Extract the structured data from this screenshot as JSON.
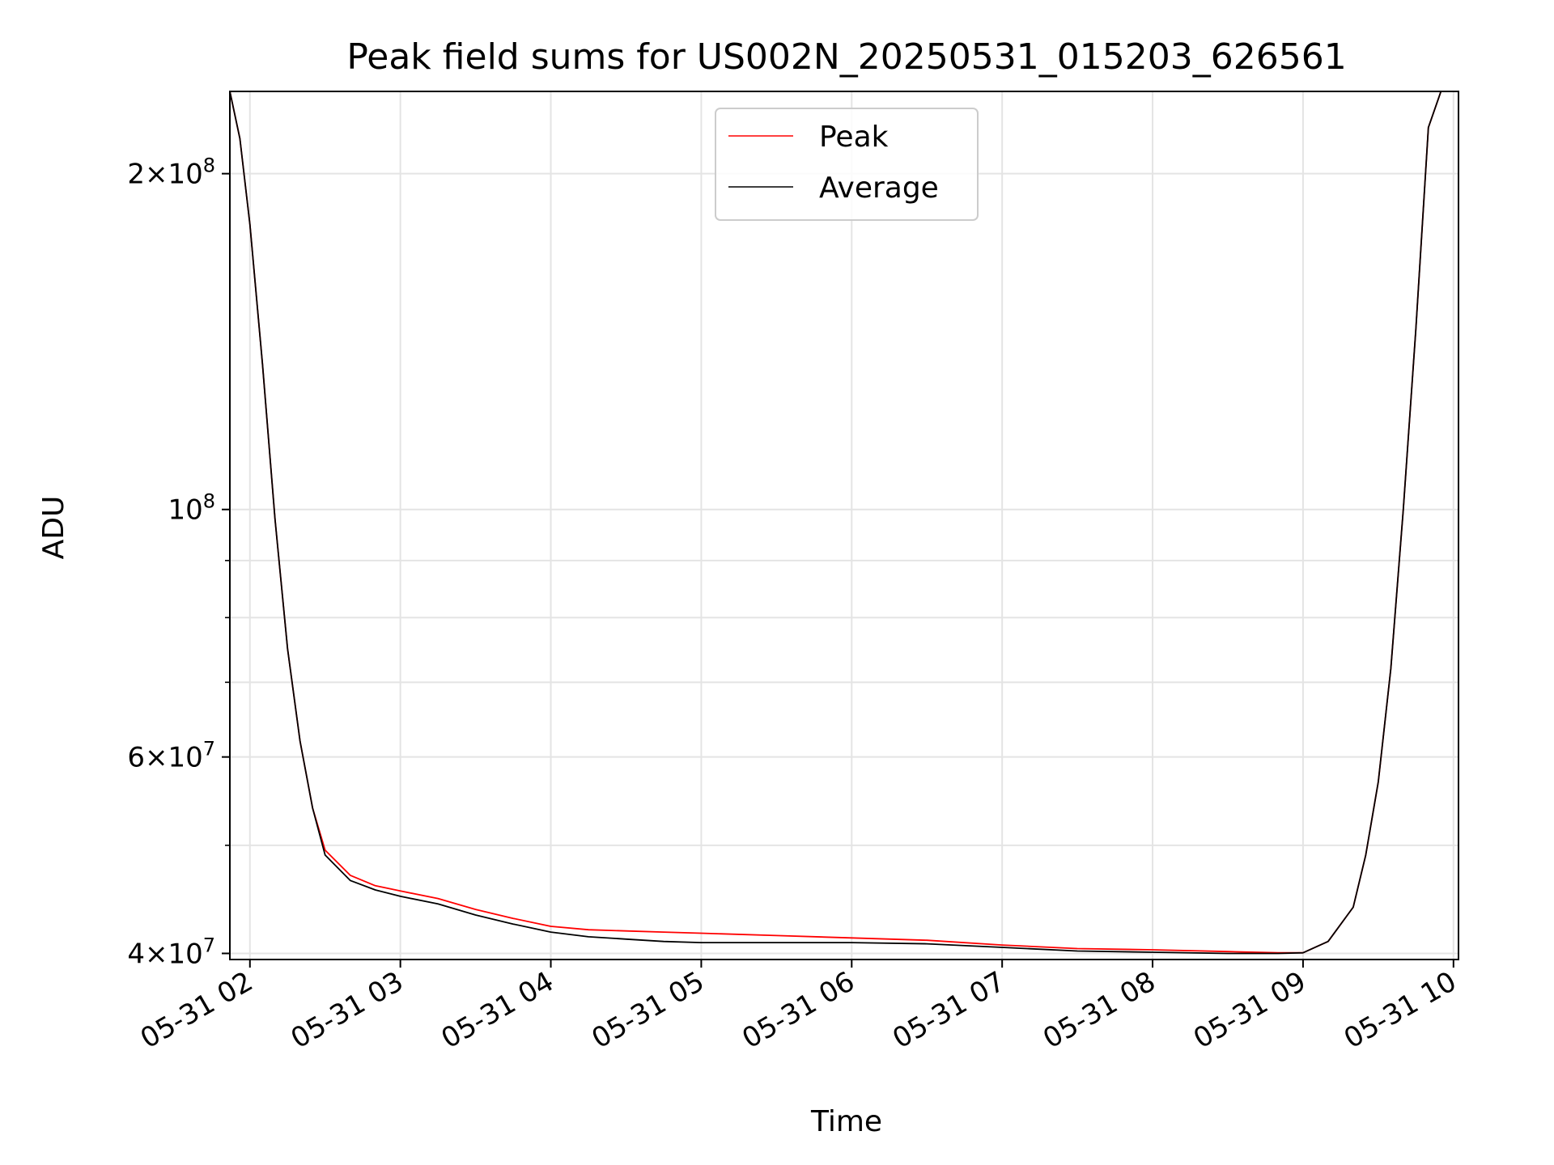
{
  "chart_data": {
    "type": "line",
    "title": "Peak field sums for US002N_20250531_015203_626561",
    "xlabel": "Time",
    "ylabel": "ADU",
    "y_scale": "log",
    "xlim": [
      "2025-05-31T01:52",
      "2025-05-31T10:02"
    ],
    "ylim": [
      39500000,
      237000000
    ],
    "x_ticks": [
      "05-31 02",
      "05-31 03",
      "05-31 04",
      "05-31 05",
      "05-31 06",
      "05-31 07",
      "05-31 08",
      "05-31 09",
      "05-31 10"
    ],
    "y_ticks": [
      {
        "value": 200000000,
        "base": "2×10",
        "exp": "8"
      },
      {
        "value": 100000000,
        "base": "10",
        "exp": "8"
      },
      {
        "value": 60000000,
        "base": "6×10",
        "exp": "7"
      },
      {
        "value": 40000000,
        "base": "4×10",
        "exp": "7"
      }
    ],
    "grid": true,
    "legend_position": "top-center",
    "series": [
      {
        "name": "Peak",
        "color": "#ff0000",
        "x": [
          "2025-05-31T01:52",
          "2025-05-31T01:56",
          "2025-05-31T02:00",
          "2025-05-31T02:05",
          "2025-05-31T02:10",
          "2025-05-31T02:15",
          "2025-05-31T02:20",
          "2025-05-31T02:25",
          "2025-05-31T02:30",
          "2025-05-31T02:40",
          "2025-05-31T02:50",
          "2025-05-31T03:00",
          "2025-05-31T03:15",
          "2025-05-31T03:30",
          "2025-05-31T03:45",
          "2025-05-31T04:00",
          "2025-05-31T04:15",
          "2025-05-31T04:30",
          "2025-05-31T04:45",
          "2025-05-31T05:00",
          "2025-05-31T05:30",
          "2025-05-31T06:00",
          "2025-05-31T06:30",
          "2025-05-31T07:00",
          "2025-05-31T07:30",
          "2025-05-31T08:00",
          "2025-05-31T08:30",
          "2025-05-31T08:50",
          "2025-05-31T09:00",
          "2025-05-31T09:10",
          "2025-05-31T09:20",
          "2025-05-31T09:25",
          "2025-05-31T09:30",
          "2025-05-31T09:35",
          "2025-05-31T09:40",
          "2025-05-31T09:45",
          "2025-05-31T09:50",
          "2025-05-31T09:55",
          "2025-05-31T10:00"
        ],
        "y": [
          237000000,
          215000000,
          180000000,
          135000000,
          98000000,
          75000000,
          62000000,
          54000000,
          49500000,
          47000000,
          46000000,
          45500000,
          44800000,
          43800000,
          43000000,
          42300000,
          42000000,
          41900000,
          41800000,
          41700000,
          41500000,
          41300000,
          41100000,
          40700000,
          40400000,
          40300000,
          40150000,
          40050000,
          40050000,
          41000000,
          44000000,
          49000000,
          57000000,
          72000000,
          100000000,
          145000000,
          220000000,
          237000000,
          237000000
        ]
      },
      {
        "name": "Average",
        "color": "#000000",
        "x": [
          "2025-05-31T01:52",
          "2025-05-31T01:56",
          "2025-05-31T02:00",
          "2025-05-31T02:05",
          "2025-05-31T02:10",
          "2025-05-31T02:15",
          "2025-05-31T02:20",
          "2025-05-31T02:25",
          "2025-05-31T02:30",
          "2025-05-31T02:40",
          "2025-05-31T02:50",
          "2025-05-31T03:00",
          "2025-05-31T03:15",
          "2025-05-31T03:30",
          "2025-05-31T03:45",
          "2025-05-31T04:00",
          "2025-05-31T04:15",
          "2025-05-31T04:30",
          "2025-05-31T04:45",
          "2025-05-31T05:00",
          "2025-05-31T05:30",
          "2025-05-31T06:00",
          "2025-05-31T06:30",
          "2025-05-31T07:00",
          "2025-05-31T07:30",
          "2025-05-31T08:00",
          "2025-05-31T08:30",
          "2025-05-31T08:50",
          "2025-05-31T09:00",
          "2025-05-31T09:10",
          "2025-05-31T09:20",
          "2025-05-31T09:25",
          "2025-05-31T09:30",
          "2025-05-31T09:35",
          "2025-05-31T09:40",
          "2025-05-31T09:45",
          "2025-05-31T09:50",
          "2025-05-31T09:55",
          "2025-05-31T10:00"
        ],
        "y": [
          237000000,
          215000000,
          180000000,
          135000000,
          98000000,
          75000000,
          62000000,
          54000000,
          49000000,
          46500000,
          45600000,
          45000000,
          44300000,
          43300000,
          42500000,
          41800000,
          41400000,
          41200000,
          41000000,
          40900000,
          40900000,
          40900000,
          40800000,
          40500000,
          40200000,
          40100000,
          40000000,
          40000000,
          40050000,
          41000000,
          44000000,
          49000000,
          57000000,
          72000000,
          100000000,
          145000000,
          220000000,
          237000000,
          237000000
        ]
      }
    ]
  }
}
